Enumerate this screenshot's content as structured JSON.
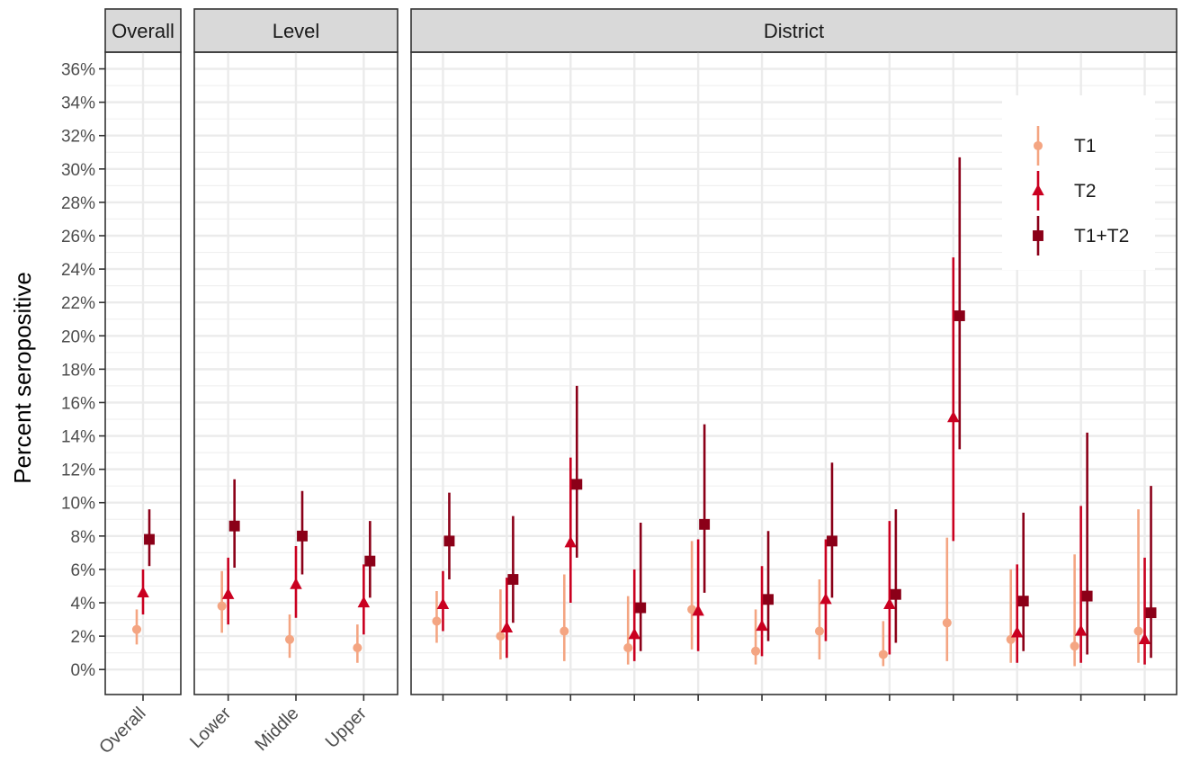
{
  "chart_data": {
    "type": "scatter",
    "ylabel": "Percent seropositive",
    "xlabel": "",
    "y_ticks": [
      "0%",
      "2%",
      "4%",
      "6%",
      "8%",
      "10%",
      "12%",
      "14%",
      "16%",
      "18%",
      "20%",
      "22%",
      "24%",
      "26%",
      "28%",
      "30%",
      "32%",
      "34%",
      "36%"
    ],
    "ylim": [
      -1.5,
      37
    ],
    "grid": true,
    "legend_position": "top-right",
    "legend": [
      {
        "name": "T1",
        "color": "#F4A582",
        "shape": "circle"
      },
      {
        "name": "T2",
        "color": "#CA0020",
        "shape": "triangle"
      },
      {
        "name": "T1+T2",
        "color": "#8B0018",
        "shape": "square"
      }
    ],
    "facets": [
      {
        "label": "Overall",
        "categories": [
          "Overall"
        ],
        "series": {
          "T1": [
            {
              "est": 2.4,
              "lo": 1.5,
              "hi": 3.6
            }
          ],
          "T2": [
            {
              "est": 4.6,
              "lo": 3.3,
              "hi": 6.0
            }
          ],
          "T1+T2": [
            {
              "est": 7.8,
              "lo": 6.2,
              "hi": 9.6
            }
          ]
        }
      },
      {
        "label": "Level",
        "categories": [
          "Lower",
          "Middle",
          "Upper"
        ],
        "series": {
          "T1": [
            {
              "est": 3.8,
              "lo": 2.2,
              "hi": 5.9
            },
            {
              "est": 1.8,
              "lo": 0.7,
              "hi": 3.3
            },
            {
              "est": 1.3,
              "lo": 0.4,
              "hi": 2.7
            }
          ],
          "T2": [
            {
              "est": 4.5,
              "lo": 2.7,
              "hi": 6.7
            },
            {
              "est": 5.1,
              "lo": 3.1,
              "hi": 7.4
            },
            {
              "est": 4.0,
              "lo": 2.1,
              "hi": 6.3
            }
          ],
          "T1+T2": [
            {
              "est": 8.6,
              "lo": 6.1,
              "hi": 11.4
            },
            {
              "est": 8.0,
              "lo": 5.7,
              "hi": 10.7
            },
            {
              "est": 6.5,
              "lo": 4.3,
              "hi": 8.9
            }
          ]
        }
      },
      {
        "label": "District",
        "categories": [
          "",
          "",
          "",
          "",
          "",
          "",
          "",
          "",
          "",
          "",
          "",
          ""
        ],
        "series": {
          "T1": [
            {
              "est": 2.9,
              "lo": 1.6,
              "hi": 4.7
            },
            {
              "est": 2.0,
              "lo": 0.6,
              "hi": 4.8
            },
            {
              "est": 2.3,
              "lo": 0.5,
              "hi": 5.7
            },
            {
              "est": 1.3,
              "lo": 0.3,
              "hi": 4.4
            },
            {
              "est": 3.6,
              "lo": 1.2,
              "hi": 7.7
            },
            {
              "est": 1.1,
              "lo": 0.3,
              "hi": 3.6
            },
            {
              "est": 2.3,
              "lo": 0.6,
              "hi": 5.4
            },
            {
              "est": 0.9,
              "lo": 0.2,
              "hi": 2.9
            },
            {
              "est": 2.8,
              "lo": 0.5,
              "hi": 7.9
            },
            {
              "est": 1.8,
              "lo": 0.4,
              "hi": 6.0
            },
            {
              "est": 1.4,
              "lo": 0.2,
              "hi": 6.9
            },
            {
              "est": 2.3,
              "lo": 0.4,
              "hi": 9.6
            }
          ],
          "T2": [
            {
              "est": 3.9,
              "lo": 2.3,
              "hi": 5.9
            },
            {
              "est": 2.5,
              "lo": 0.7,
              "hi": 5.5
            },
            {
              "est": 7.6,
              "lo": 4.0,
              "hi": 12.7
            },
            {
              "est": 2.1,
              "lo": 0.5,
              "hi": 6.0
            },
            {
              "est": 3.5,
              "lo": 1.1,
              "hi": 7.8
            },
            {
              "est": 2.6,
              "lo": 0.8,
              "hi": 6.2
            },
            {
              "est": 4.2,
              "lo": 1.7,
              "hi": 7.8
            },
            {
              "est": 3.9,
              "lo": 0.9,
              "hi": 8.9
            },
            {
              "est": 15.1,
              "lo": 7.7,
              "hi": 24.7
            },
            {
              "est": 2.2,
              "lo": 0.4,
              "hi": 6.3
            },
            {
              "est": 2.3,
              "lo": 0.4,
              "hi": 9.8
            },
            {
              "est": 1.8,
              "lo": 0.3,
              "hi": 6.7
            }
          ],
          "T1+T2": [
            {
              "est": 7.7,
              "lo": 5.4,
              "hi": 10.6
            },
            {
              "est": 5.4,
              "lo": 2.8,
              "hi": 9.2
            },
            {
              "est": 11.1,
              "lo": 6.7,
              "hi": 17.0
            },
            {
              "est": 3.7,
              "lo": 1.1,
              "hi": 8.8
            },
            {
              "est": 8.7,
              "lo": 4.6,
              "hi": 14.7
            },
            {
              "est": 4.2,
              "lo": 1.7,
              "hi": 8.3
            },
            {
              "est": 7.7,
              "lo": 4.3,
              "hi": 12.4
            },
            {
              "est": 4.5,
              "lo": 1.6,
              "hi": 9.6
            },
            {
              "est": 21.2,
              "lo": 13.2,
              "hi": 30.7
            },
            {
              "est": 4.1,
              "lo": 1.1,
              "hi": 9.4
            },
            {
              "est": 4.4,
              "lo": 0.9,
              "hi": 14.2
            },
            {
              "est": 3.4,
              "lo": 0.7,
              "hi": 11.0
            }
          ]
        }
      }
    ]
  }
}
